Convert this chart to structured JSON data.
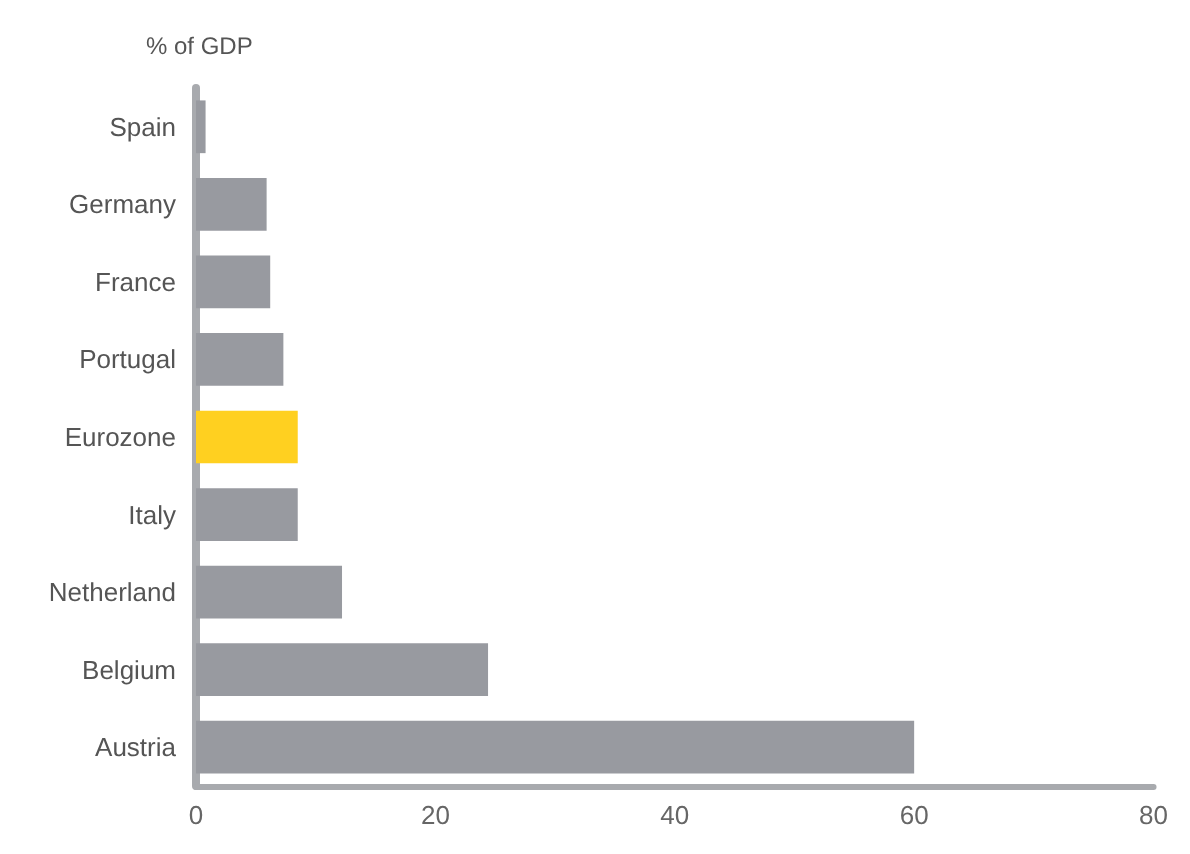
{
  "chart_data": {
    "type": "bar",
    "orientation": "horizontal",
    "title": "% of GDP",
    "categories": [
      "Spain",
      "Germany",
      "France",
      "Portugal",
      "Eurozone",
      "Italy",
      "Netherland",
      "Belgium",
      "Austria"
    ],
    "values": [
      0.8,
      5.9,
      6.2,
      7.3,
      8.5,
      8.5,
      12.2,
      24.4,
      60
    ],
    "colors": [
      "#989aa0",
      "#989aa0",
      "#989aa0",
      "#989aa0",
      "#ffd020",
      "#989aa0",
      "#989aa0",
      "#989aa0",
      "#989aa0"
    ],
    "xlim": [
      0,
      80
    ],
    "xticks": [
      0,
      20,
      40,
      60,
      80
    ],
    "grid": false
  }
}
